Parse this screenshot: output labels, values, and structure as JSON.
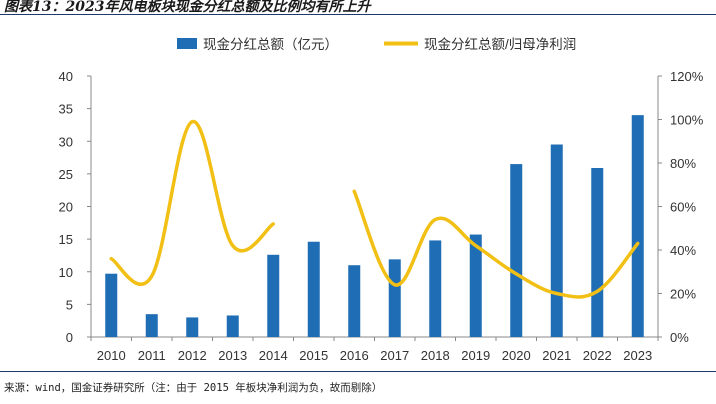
{
  "header": {
    "title": "图表13：2023年风电板块现金分红总额及比例均有所上升"
  },
  "chart_data": {
    "type": "bar+line",
    "title": "图表13：2023年风电板块现金分红总额及比例均有所上升",
    "categories": [
      "2010",
      "2011",
      "2012",
      "2013",
      "2014",
      "2015",
      "2016",
      "2017",
      "2018",
      "2019",
      "2020",
      "2021",
      "2022",
      "2023"
    ],
    "series": [
      {
        "name": "现金分红总额（亿元）",
        "type": "bar",
        "axis": "left",
        "color": "#1f6db5",
        "values": [
          9.7,
          3.5,
          3.0,
          3.3,
          12.6,
          14.6,
          11.0,
          11.9,
          14.8,
          15.7,
          26.5,
          29.5,
          25.9,
          34.0
        ]
      },
      {
        "name": "现金分红总额/归母净利润",
        "type": "line",
        "axis": "right",
        "color": "#f2bf14",
        "values": [
          36,
          28,
          99,
          42,
          52,
          null,
          67,
          24,
          54,
          42,
          29,
          20,
          21,
          43
        ]
      }
    ],
    "y_left": {
      "min": 0,
      "max": 40,
      "ticks": [
        "0",
        "5",
        "10",
        "15",
        "20",
        "25",
        "30",
        "35",
        "40"
      ]
    },
    "y_right": {
      "min": 0,
      "max": 120,
      "ticks": [
        "0%",
        "20%",
        "40%",
        "60%",
        "80%",
        "100%",
        "120%"
      ]
    },
    "legend_position": "top-center",
    "grid": false
  },
  "source": {
    "text": "来源：wind，国金证券研究所（注：由于 2015 年板块净利润为负，故而剔除）"
  }
}
